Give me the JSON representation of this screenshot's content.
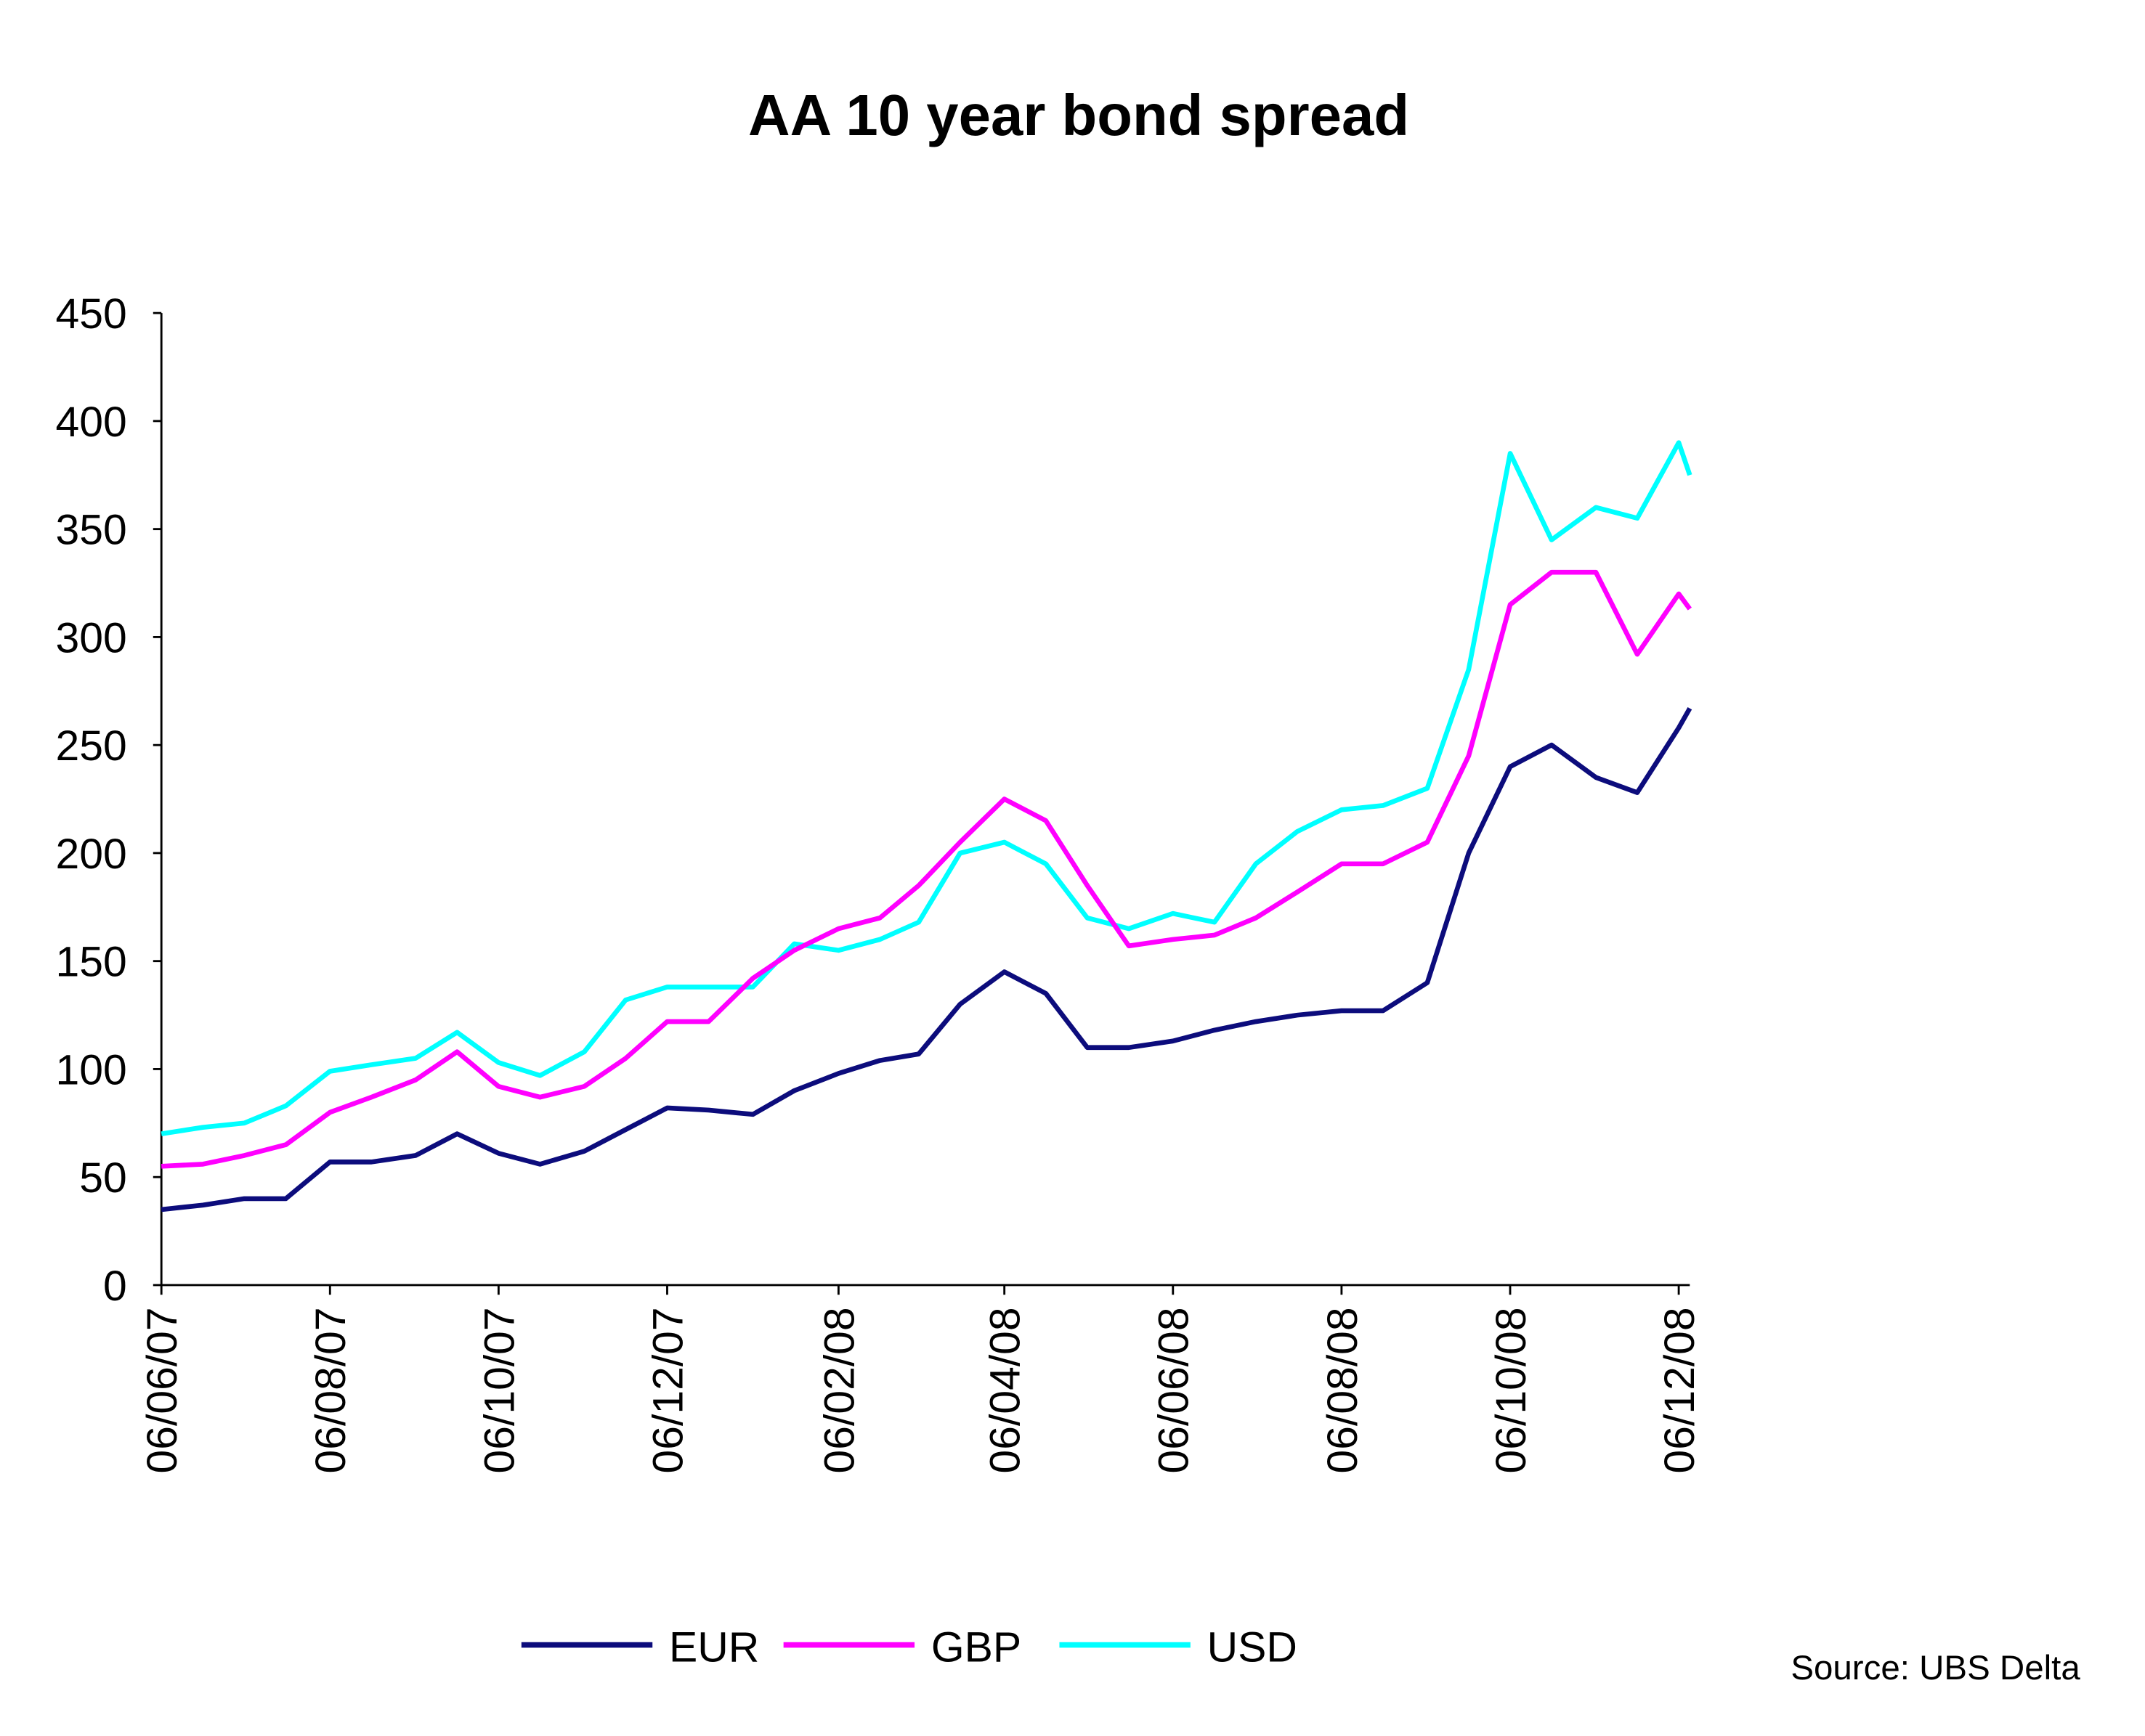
{
  "chart_data": {
    "type": "line",
    "title": "AA 10 year bond spread",
    "source": "Source: UBS Delta",
    "x": [
      "2007-06-06",
      "2007-06-21",
      "2007-07-06",
      "2007-07-21",
      "2007-08-06",
      "2007-08-21",
      "2007-09-06",
      "2007-09-21",
      "2007-10-06",
      "2007-10-21",
      "2007-11-06",
      "2007-11-21",
      "2007-12-06",
      "2007-12-21",
      "2008-01-06",
      "2008-01-21",
      "2008-02-06",
      "2008-02-21",
      "2008-03-06",
      "2008-03-21",
      "2008-04-06",
      "2008-04-21",
      "2008-05-06",
      "2008-05-21",
      "2008-06-06",
      "2008-06-21",
      "2008-07-06",
      "2008-07-21",
      "2008-08-06",
      "2008-08-21",
      "2008-09-06",
      "2008-09-21",
      "2008-10-06",
      "2008-10-21",
      "2008-11-06",
      "2008-11-21",
      "2008-12-06",
      "2008-12-10"
    ],
    "series": [
      {
        "name": "EUR",
        "color": "#0c0c7c",
        "values": [
          35,
          37,
          40,
          40,
          57,
          57,
          60,
          70,
          61,
          56,
          62,
          72,
          82,
          81,
          79,
          90,
          98,
          104,
          107,
          130,
          145,
          135,
          110,
          110,
          113,
          118,
          122,
          125,
          127,
          127,
          140,
          200,
          240,
          250,
          235,
          228,
          258,
          267
        ]
      },
      {
        "name": "GBP",
        "color": "#ff00ff",
        "values": [
          55,
          56,
          60,
          65,
          80,
          87,
          95,
          108,
          92,
          87,
          92,
          105,
          122,
          122,
          142,
          155,
          165,
          170,
          185,
          205,
          225,
          215,
          185,
          157,
          160,
          162,
          170,
          182,
          195,
          195,
          205,
          245,
          315,
          330,
          330,
          292,
          320,
          313
        ]
      },
      {
        "name": "USD",
        "color": "#00ffff",
        "values": [
          70,
          73,
          75,
          83,
          99,
          102,
          105,
          117,
          103,
          97,
          108,
          132,
          138,
          138,
          138,
          158,
          155,
          160,
          168,
          200,
          205,
          195,
          170,
          165,
          172,
          168,
          195,
          210,
          220,
          222,
          230,
          285,
          385,
          345,
          360,
          355,
          390,
          375
        ]
      }
    ],
    "xlim": [
      "2007-06-06",
      "2008-12-10"
    ],
    "xticks": [
      {
        "value": "2007-06-06",
        "label": "06/06/07"
      },
      {
        "value": "2007-08-06",
        "label": "06/08/07"
      },
      {
        "value": "2007-10-06",
        "label": "06/10/07"
      },
      {
        "value": "2007-12-06",
        "label": "06/12/07"
      },
      {
        "value": "2008-02-06",
        "label": "06/02/08"
      },
      {
        "value": "2008-04-06",
        "label": "06/04/08"
      },
      {
        "value": "2008-06-06",
        "label": "06/06/08"
      },
      {
        "value": "2008-08-06",
        "label": "06/08/08"
      },
      {
        "value": "2008-10-06",
        "label": "06/10/08"
      },
      {
        "value": "2008-12-06",
        "label": "06/12/08"
      }
    ],
    "ylim": [
      0,
      450
    ],
    "yticks": [
      0,
      50,
      100,
      150,
      200,
      250,
      300,
      350,
      400,
      450
    ],
    "grid": false,
    "legend": "bottom"
  }
}
